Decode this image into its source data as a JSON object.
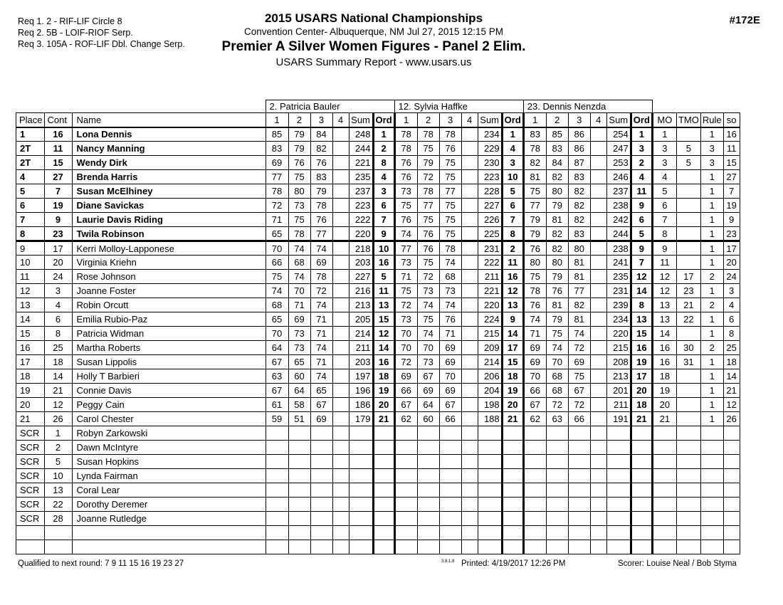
{
  "header": {
    "requirements": [
      "Req 1.  2 - RIF-LIF Circle 8",
      "Req 2.  5B - LOIF-RIOF Serp.",
      "Req 3.  105A - ROF-LIF Dbl. Change Serp."
    ],
    "title": "2015 USARS National Championships",
    "venue": "Convention Center- Albuquerque, NM  Jul 27, 2015  12:15 PM",
    "event": "Premier A Silver Women Figures - Panel 2 Elim.",
    "report": "USARS Summary Report - www.usars.us",
    "event_number": "#172E"
  },
  "table": {
    "judges": [
      "2.  Patricia Bauler",
      "12.  Sylvia Haffke",
      "23.  Dennis Nenzda"
    ],
    "columns": [
      "Place",
      "Cont",
      "Name",
      "1",
      "2",
      "3",
      "4",
      "Sum",
      "Ord",
      "1",
      "2",
      "3",
      "4",
      "Sum",
      "Ord",
      "1",
      "2",
      "3",
      "4",
      "Sum",
      "Ord",
      "MO",
      "TMO",
      "Rule",
      "so"
    ],
    "rows": [
      {
        "bold": true,
        "thick_bottom": false,
        "cells": [
          "1",
          "16",
          "Lona Dennis",
          "85",
          "79",
          "84",
          "",
          "248",
          "1",
          "78",
          "78",
          "78",
          "",
          "234",
          "1",
          "83",
          "85",
          "86",
          "",
          "254",
          "1",
          "1",
          "",
          "1",
          "16"
        ]
      },
      {
        "bold": true,
        "thick_bottom": false,
        "cells": [
          "2T",
          "11",
          "Nancy Manning",
          "83",
          "79",
          "82",
          "",
          "244",
          "2",
          "78",
          "75",
          "76",
          "",
          "229",
          "4",
          "78",
          "83",
          "86",
          "",
          "247",
          "3",
          "3",
          "5",
          "3",
          "11"
        ]
      },
      {
        "bold": true,
        "thick_bottom": false,
        "cells": [
          "2T",
          "15",
          "Wendy Dirk",
          "69",
          "76",
          "76",
          "",
          "221",
          "8",
          "76",
          "79",
          "75",
          "",
          "230",
          "3",
          "82",
          "84",
          "87",
          "",
          "253",
          "2",
          "3",
          "5",
          "3",
          "15"
        ]
      },
      {
        "bold": true,
        "thick_bottom": false,
        "cells": [
          "4",
          "27",
          "Brenda Harris",
          "77",
          "75",
          "83",
          "",
          "235",
          "4",
          "76",
          "72",
          "75",
          "",
          "223",
          "10",
          "81",
          "82",
          "83",
          "",
          "246",
          "4",
          "4",
          "",
          "1",
          "27"
        ]
      },
      {
        "bold": true,
        "thick_bottom": false,
        "cells": [
          "5",
          "7",
          "Susan McElhiney",
          "78",
          "80",
          "79",
          "",
          "237",
          "3",
          "73",
          "78",
          "77",
          "",
          "228",
          "5",
          "75",
          "80",
          "82",
          "",
          "237",
          "11",
          "5",
          "",
          "1",
          "7"
        ]
      },
      {
        "bold": true,
        "thick_bottom": false,
        "cells": [
          "6",
          "19",
          "Diane Savickas",
          "72",
          "73",
          "78",
          "",
          "223",
          "6",
          "75",
          "77",
          "75",
          "",
          "227",
          "6",
          "77",
          "79",
          "82",
          "",
          "238",
          "9",
          "6",
          "",
          "1",
          "19"
        ]
      },
      {
        "bold": true,
        "thick_bottom": false,
        "cells": [
          "7",
          "9",
          "Laurie Davis Riding",
          "71",
          "75",
          "76",
          "",
          "222",
          "7",
          "76",
          "75",
          "75",
          "",
          "226",
          "7",
          "79",
          "81",
          "82",
          "",
          "242",
          "6",
          "7",
          "",
          "1",
          "9"
        ]
      },
      {
        "bold": true,
        "thick_bottom": true,
        "cells": [
          "8",
          "23",
          "Twila Robinson",
          "65",
          "78",
          "77",
          "",
          "220",
          "9",
          "74",
          "76",
          "75",
          "",
          "225",
          "8",
          "79",
          "82",
          "83",
          "",
          "244",
          "5",
          "8",
          "",
          "1",
          "23"
        ]
      },
      {
        "bold": false,
        "thick_bottom": false,
        "cells": [
          "9",
          "17",
          "Kerri Molloy-Lapponese",
          "70",
          "74",
          "74",
          "",
          "218",
          "10",
          "77",
          "76",
          "78",
          "",
          "231",
          "2",
          "76",
          "82",
          "80",
          "",
          "238",
          "9",
          "9",
          "",
          "1",
          "17"
        ]
      },
      {
        "bold": false,
        "thick_bottom": false,
        "cells": [
          "10",
          "20",
          "Virginia Kriehn",
          "66",
          "68",
          "69",
          "",
          "203",
          "16",
          "73",
          "75",
          "74",
          "",
          "222",
          "11",
          "80",
          "80",
          "81",
          "",
          "241",
          "7",
          "11",
          "",
          "1",
          "20"
        ]
      },
      {
        "bold": false,
        "thick_bottom": false,
        "cells": [
          "11",
          "24",
          "Rose Johnson",
          "75",
          "74",
          "78",
          "",
          "227",
          "5",
          "71",
          "72",
          "68",
          "",
          "211",
          "16",
          "75",
          "79",
          "81",
          "",
          "235",
          "12",
          "12",
          "17",
          "2",
          "24"
        ]
      },
      {
        "bold": false,
        "thick_bottom": false,
        "cells": [
          "12",
          "3",
          "Joanne Foster",
          "74",
          "70",
          "72",
          "",
          "216",
          "11",
          "75",
          "73",
          "73",
          "",
          "221",
          "12",
          "78",
          "76",
          "77",
          "",
          "231",
          "14",
          "12",
          "23",
          "1",
          "3"
        ]
      },
      {
        "bold": false,
        "thick_bottom": false,
        "cells": [
          "13",
          "4",
          "Robin Orcutt",
          "68",
          "71",
          "74",
          "",
          "213",
          "13",
          "72",
          "74",
          "74",
          "",
          "220",
          "13",
          "76",
          "81",
          "82",
          "",
          "239",
          "8",
          "13",
          "21",
          "2",
          "4"
        ]
      },
      {
        "bold": false,
        "thick_bottom": false,
        "cells": [
          "14",
          "6",
          "Emilia Rubio-Paz",
          "65",
          "69",
          "71",
          "",
          "205",
          "15",
          "73",
          "75",
          "76",
          "",
          "224",
          "9",
          "74",
          "79",
          "81",
          "",
          "234",
          "13",
          "13",
          "22",
          "1",
          "6"
        ]
      },
      {
        "bold": false,
        "thick_bottom": false,
        "cells": [
          "15",
          "8",
          "Patricia Widman",
          "70",
          "73",
          "71",
          "",
          "214",
          "12",
          "70",
          "74",
          "71",
          "",
          "215",
          "14",
          "71",
          "75",
          "74",
          "",
          "220",
          "15",
          "14",
          "",
          "1",
          "8"
        ]
      },
      {
        "bold": false,
        "thick_bottom": false,
        "cells": [
          "16",
          "25",
          "Martha Roberts",
          "64",
          "73",
          "74",
          "",
          "211",
          "14",
          "70",
          "70",
          "69",
          "",
          "209",
          "17",
          "69",
          "74",
          "72",
          "",
          "215",
          "16",
          "16",
          "30",
          "2",
          "25"
        ]
      },
      {
        "bold": false,
        "thick_bottom": false,
        "cells": [
          "17",
          "18",
          "Susan Lippolis",
          "67",
          "65",
          "71",
          "",
          "203",
          "16",
          "72",
          "73",
          "69",
          "",
          "214",
          "15",
          "69",
          "70",
          "69",
          "",
          "208",
          "19",
          "16",
          "31",
          "1",
          "18"
        ]
      },
      {
        "bold": false,
        "thick_bottom": false,
        "cells": [
          "18",
          "14",
          "Holly T Barbieri",
          "63",
          "60",
          "74",
          "",
          "197",
          "18",
          "69",
          "67",
          "70",
          "",
          "206",
          "18",
          "70",
          "68",
          "75",
          "",
          "213",
          "17",
          "18",
          "",
          "1",
          "14"
        ]
      },
      {
        "bold": false,
        "thick_bottom": false,
        "cells": [
          "19",
          "21",
          "Connie Davis",
          "67",
          "64",
          "65",
          "",
          "196",
          "19",
          "66",
          "69",
          "69",
          "",
          "204",
          "19",
          "66",
          "68",
          "67",
          "",
          "201",
          "20",
          "19",
          "",
          "1",
          "21"
        ]
      },
      {
        "bold": false,
        "thick_bottom": false,
        "cells": [
          "20",
          "12",
          "Peggy Cain",
          "61",
          "58",
          "67",
          "",
          "186",
          "20",
          "67",
          "64",
          "67",
          "",
          "198",
          "20",
          "67",
          "72",
          "72",
          "",
          "211",
          "18",
          "20",
          "",
          "1",
          "12"
        ]
      },
      {
        "bold": false,
        "thick_bottom": false,
        "cells": [
          "21",
          "26",
          "Carol Chester",
          "59",
          "51",
          "69",
          "",
          "179",
          "21",
          "62",
          "60",
          "66",
          "",
          "188",
          "21",
          "62",
          "63",
          "66",
          "",
          "191",
          "21",
          "21",
          "",
          "1",
          "26"
        ]
      },
      {
        "bold": false,
        "thick_bottom": false,
        "cells": [
          "SCR",
          "1",
          "Robyn Zarkowski",
          "",
          "",
          "",
          "",
          "",
          "",
          "",
          "",
          "",
          "",
          "",
          "",
          "",
          "",
          "",
          "",
          "",
          "",
          "",
          "",
          "",
          ""
        ]
      },
      {
        "bold": false,
        "thick_bottom": false,
        "cells": [
          "SCR",
          "2",
          "Dawn McIntyre",
          "",
          "",
          "",
          "",
          "",
          "",
          "",
          "",
          "",
          "",
          "",
          "",
          "",
          "",
          "",
          "",
          "",
          "",
          "",
          "",
          "",
          ""
        ]
      },
      {
        "bold": false,
        "thick_bottom": false,
        "cells": [
          "SCR",
          "5",
          "Susan Hopkins",
          "",
          "",
          "",
          "",
          "",
          "",
          "",
          "",
          "",
          "",
          "",
          "",
          "",
          "",
          "",
          "",
          "",
          "",
          "",
          "",
          "",
          ""
        ]
      },
      {
        "bold": false,
        "thick_bottom": false,
        "cells": [
          "SCR",
          "10",
          "Lynda Fairman",
          "",
          "",
          "",
          "",
          "",
          "",
          "",
          "",
          "",
          "",
          "",
          "",
          "",
          "",
          "",
          "",
          "",
          "",
          "",
          "",
          "",
          ""
        ]
      },
      {
        "bold": false,
        "thick_bottom": false,
        "cells": [
          "SCR",
          "13",
          "Coral Lear",
          "",
          "",
          "",
          "",
          "",
          "",
          "",
          "",
          "",
          "",
          "",
          "",
          "",
          "",
          "",
          "",
          "",
          "",
          "",
          "",
          "",
          ""
        ]
      },
      {
        "bold": false,
        "thick_bottom": false,
        "cells": [
          "SCR",
          "22",
          "Dorothy Deremer",
          "",
          "",
          "",
          "",
          "",
          "",
          "",
          "",
          "",
          "",
          "",
          "",
          "",
          "",
          "",
          "",
          "",
          "",
          "",
          "",
          "",
          ""
        ]
      },
      {
        "bold": false,
        "thick_bottom": false,
        "cells": [
          "SCR",
          "28",
          "Joanne Rutledge",
          "",
          "",
          "",
          "",
          "",
          "",
          "",
          "",
          "",
          "",
          "",
          "",
          "",
          "",
          "",
          "",
          "",
          "",
          "",
          "",
          "",
          ""
        ]
      },
      {
        "bold": false,
        "thick_bottom": false,
        "cells": [
          "",
          "",
          "",
          "",
          "",
          "",
          "",
          "",
          "",
          "",
          "",
          "",
          "",
          "",
          "",
          "",
          "",
          "",
          "",
          "",
          "",
          "",
          "",
          "",
          ""
        ]
      },
      {
        "bold": false,
        "thick_bottom": false,
        "cells": [
          "",
          "",
          "",
          "",
          "",
          "",
          "",
          "",
          "",
          "",
          "",
          "",
          "",
          "",
          "",
          "",
          "",
          "",
          "",
          "",
          "",
          "",
          "",
          "",
          ""
        ]
      }
    ]
  },
  "footer": {
    "qualified": "Qualified to next round:   7 9 11 15 16 19 23 27",
    "version": "3.8.1.8",
    "printed": "Printed:  4/19/2017  12:26 PM",
    "scorer": "Scorer:   Louise Neal / Bob Styma"
  }
}
